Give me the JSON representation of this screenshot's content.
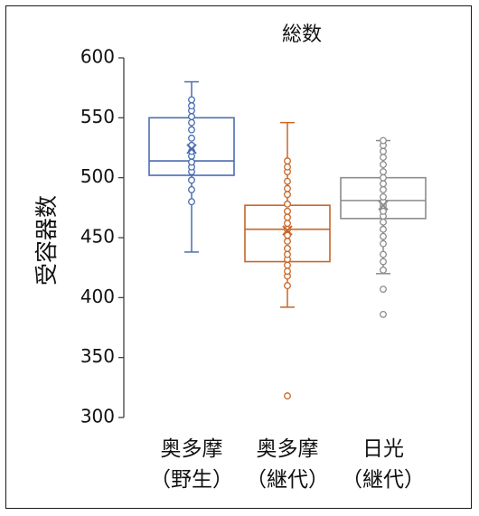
{
  "chart_data": {
    "type": "box",
    "title": "総数",
    "ylabel": "受容器数",
    "xlabel": "",
    "ylim": [
      300,
      600
    ],
    "yticks": [
      300,
      350,
      400,
      450,
      500,
      550,
      600
    ],
    "grid": false,
    "groups": [
      {
        "label_line1": "奥多摩",
        "label_line2": "（野生）",
        "color": "#4a6db0",
        "min": 438,
        "q1": 502,
        "median": 514,
        "q3": 550,
        "max": 580,
        "mean": 524,
        "points": [
          480,
          490,
          498,
          505,
          509,
          513,
          518,
          522,
          527,
          533,
          540,
          546,
          551,
          556,
          560,
          565
        ]
      },
      {
        "label_line1": "奥多摩",
        "label_line2": "（継代）",
        "color": "#c86628",
        "min": 392,
        "q1": 430,
        "median": 457,
        "q3": 477,
        "max": 546,
        "mean": 456,
        "points": [
          318,
          410,
          418,
          422,
          427,
          432,
          436,
          441,
          447,
          452,
          457,
          462,
          467,
          472,
          478,
          486,
          491,
          497,
          505,
          509,
          514
        ]
      },
      {
        "label_line1": "日光",
        "label_line2": "（継代）",
        "color": "#8c8c8c",
        "min": 420,
        "q1": 466,
        "median": 481,
        "q3": 500,
        "max": 531,
        "mean": 477,
        "points": [
          386,
          407,
          423,
          430,
          436,
          445,
          451,
          457,
          463,
          468,
          472,
          477,
          480,
          484,
          490,
          495,
          500,
          505,
          511,
          517,
          522,
          527,
          531
        ]
      }
    ]
  }
}
